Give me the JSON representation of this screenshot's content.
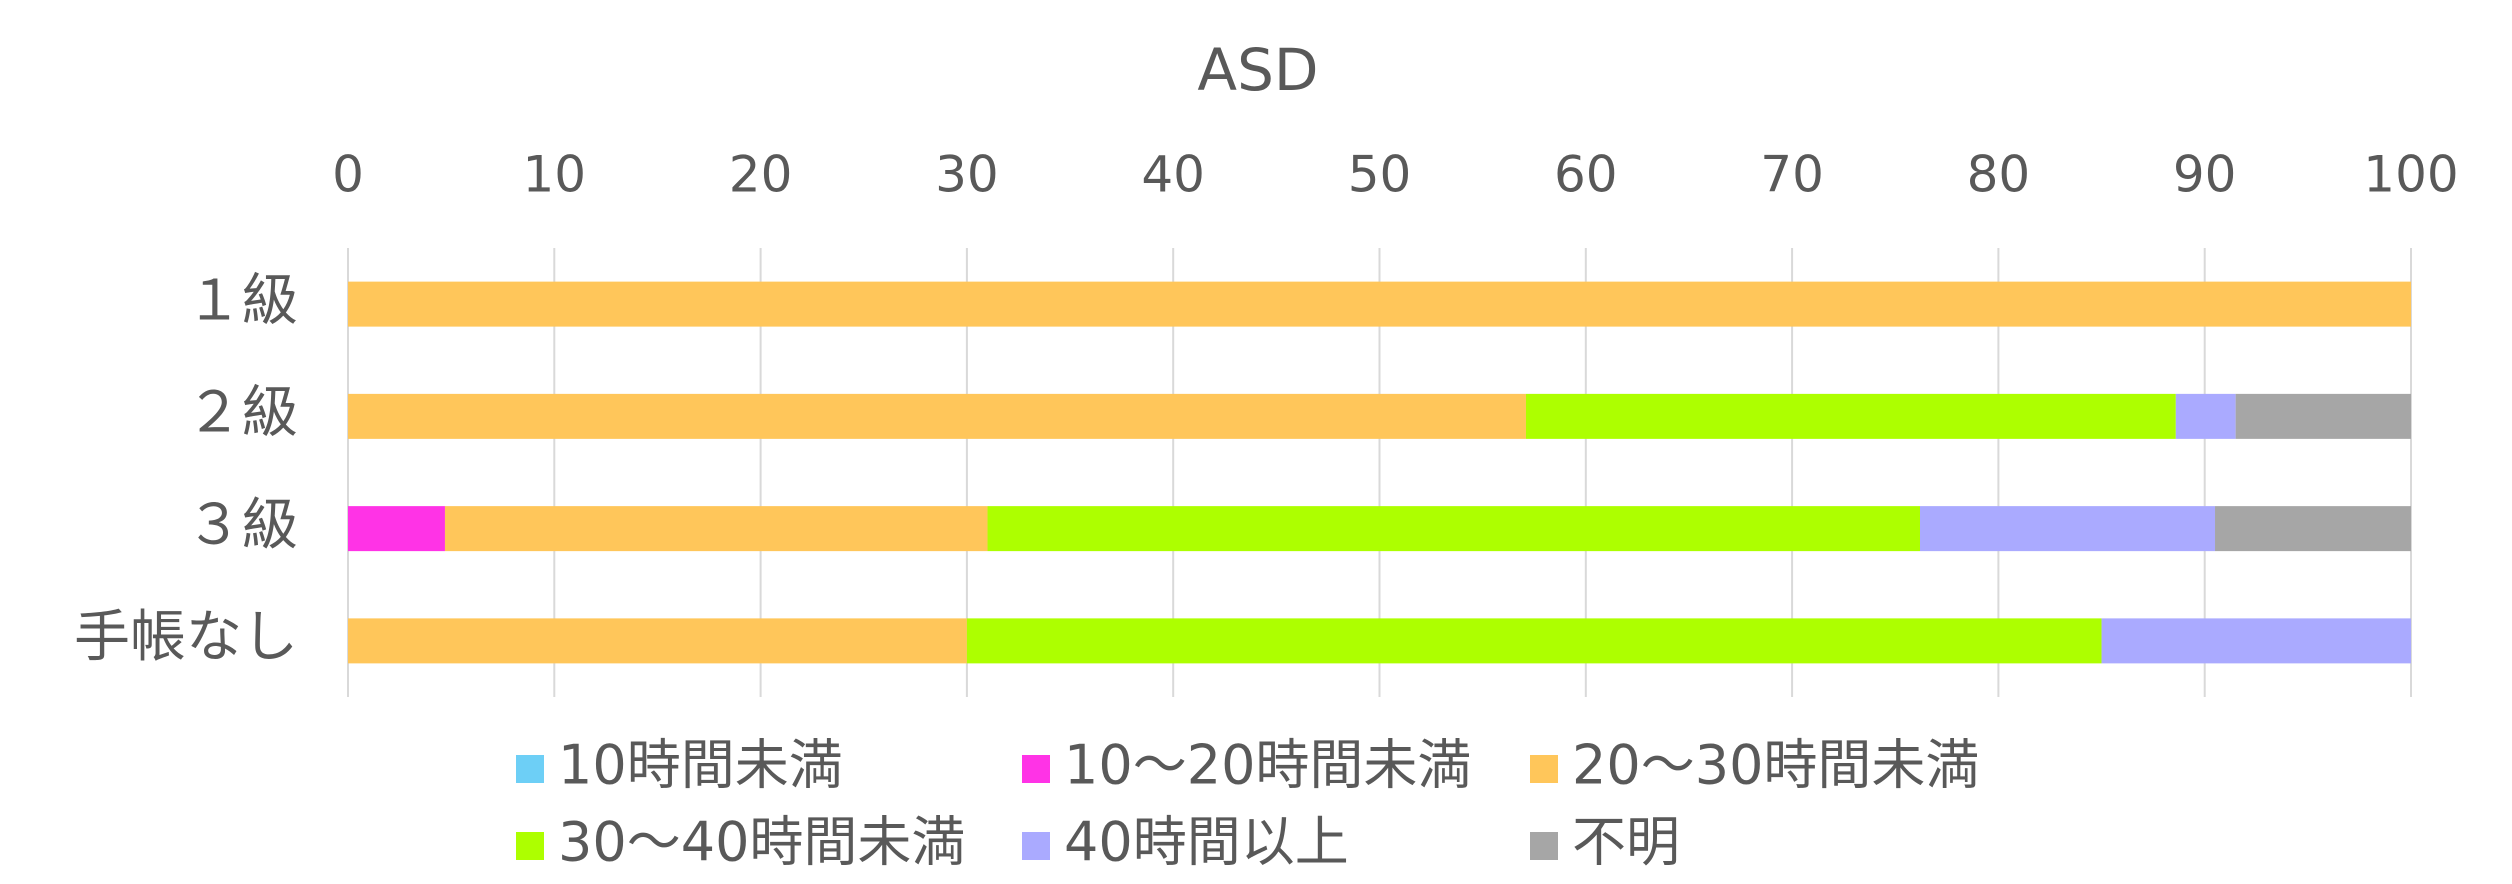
{
  "chart_data": {
    "type": "stacked-barh",
    "title": "ASD",
    "categories": [
      "１級",
      "２級",
      "３級",
      "手帳なし"
    ],
    "series": [
      {
        "name": "10時間未満",
        "color": "#6DCFF6",
        "values": [
          0,
          0,
          0,
          0
        ]
      },
      {
        "name": "10～20時間未満",
        "color": "#FF33E6",
        "values": [
          0,
          0,
          4.7,
          0
        ]
      },
      {
        "name": "20～30時間未満",
        "color": "#FFC65A",
        "values": [
          100,
          57.1,
          26.3,
          30
        ]
      },
      {
        "name": "30～40時間未満",
        "color": "#ADFF00",
        "values": [
          0,
          31.5,
          45.2,
          55
        ]
      },
      {
        "name": "40時間以上",
        "color": "#AAAAFF",
        "values": [
          0,
          2.9,
          14.3,
          15
        ]
      },
      {
        "name": "不明",
        "color": "#A6A6A6",
        "values": [
          0,
          8.5,
          9.5,
          0
        ]
      }
    ],
    "xlim": [
      0,
      100
    ],
    "xticks": [
      0,
      10,
      20,
      30,
      40,
      50,
      60,
      70,
      80,
      90,
      100
    ],
    "grid": true,
    "legend": "bottom"
  }
}
